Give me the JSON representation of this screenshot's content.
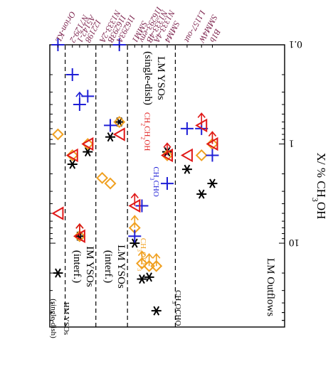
{
  "colors": {
    "CH3OCHO": "#000000",
    "CH3OCH3": "#f0a020",
    "CH3CHO": "#1f1fd6",
    "CH2CH2OH": "#e01818",
    "source_label": "#7a1f4a",
    "axis": "#000000"
  },
  "chart_data": {
    "type": "scatter",
    "orientation": "rotated 180 degrees (printed upside down)",
    "ylabel": "X/ % CH3OH",
    "yscale": "log",
    "ylim": [
      0.1,
      70
    ],
    "yticks": [
      {
        "v": 0.1,
        "label": "0.1"
      },
      {
        "v": 1,
        "label": "1"
      },
      {
        "v": 10,
        "label": "10"
      }
    ],
    "groups": [
      {
        "label": "LM Outflows",
        "sub": ""
      },
      {
        "label": "LM YSOs",
        "sub": "(single-dish)"
      },
      {
        "label": "LM YSOs",
        "sub": "(interf.)"
      },
      {
        "label": "IM YSOs",
        "sub": "(interf.)"
      },
      {
        "label": "HM YSOs",
        "sub": "(single-dish)"
      }
    ],
    "categories": [
      "B1b",
      "SMM4W",
      "L1157-out",
      "SMM4",
      "N1333-4A",
      "N1333-4B",
      "I16293-env",
      "SMM1",
      "I16293A",
      "I16293B",
      "N1333-2A",
      "I22198",
      "A5142-1",
      "N7129-2",
      "Orion-KL"
    ],
    "species_labels": [
      "CH3OCHO",
      "CH3OCH3",
      "CH3CHO",
      "CH2CH2OH"
    ],
    "series": [
      {
        "name": "CH3OCHO",
        "marker": "asterisk",
        "values": [
          {
            "x": "B1b",
            "y": 2.5
          },
          {
            "x": "SMM4W",
            "y": 3.2
          },
          {
            "x": "L1157-out",
            "y": 1.8
          },
          {
            "x": "SMM4",
            "y": 1.2
          },
          {
            "x": "N1333-4A",
            "y": 48
          },
          {
            "x": "N1333-4B",
            "y": 22
          },
          {
            "x": "I16293-env",
            "y": 23
          },
          {
            "x": "SMM1",
            "y": 10
          },
          {
            "x": "I16293A",
            "y": 0.6
          },
          {
            "x": "I16293B",
            "y": 0.85
          },
          {
            "x": "I22198",
            "y": 1.2
          },
          {
            "x": "A5142-1",
            "y": 8.5,
            "upper_limit": true
          },
          {
            "x": "N7129-2",
            "y": 1.6
          },
          {
            "x": "Orion-KL",
            "y": 20
          }
        ]
      },
      {
        "name": "CH3OCH3",
        "marker": "diamond",
        "values": [
          {
            "x": "B1b",
            "y": 1.0,
            "upper_limit": true
          },
          {
            "x": "SMM4W",
            "y": 1.3
          },
          {
            "x": "SMM4",
            "y": 1.3
          },
          {
            "x": "N1333-4A",
            "y": 17,
            "upper_limit": true
          },
          {
            "x": "N1333-4B",
            "y": 17,
            "upper_limit": true
          },
          {
            "x": "I16293-env",
            "y": 16,
            "upper_limit": true
          },
          {
            "x": "SMM1",
            "y": 7,
            "upper_limit": true
          },
          {
            "x": "I16293A",
            "y": 0.6
          },
          {
            "x": "I16293B",
            "y": 2.5
          },
          {
            "x": "N1333-2A",
            "y": 2.2
          },
          {
            "x": "I22198",
            "y": 1.0
          },
          {
            "x": "A5142-1",
            "y": 8.5,
            "upper_limit": true
          },
          {
            "x": "N7129-2",
            "y": 1.3
          },
          {
            "x": "Orion-KL",
            "y": 0.8
          }
        ]
      },
      {
        "name": "CH3CHO",
        "marker": "plus",
        "values": [
          {
            "x": "B1b",
            "y": 1.3
          },
          {
            "x": "SMM4W",
            "y": 0.7
          },
          {
            "x": "L1157-out",
            "y": 0.7
          },
          {
            "x": "SMM4",
            "y": 2.5
          },
          {
            "x": "I16293-env",
            "y": 4.2
          },
          {
            "x": "SMM1",
            "y": 8.5
          },
          {
            "x": "I16293A",
            "y": 0.1
          },
          {
            "x": "I16293B",
            "y": 0.65
          },
          {
            "x": "I22198",
            "y": 0.33
          },
          {
            "x": "A5142-1",
            "y": 0.4,
            "upper_limit": true
          },
          {
            "x": "N7129-2",
            "y": 0.2
          },
          {
            "x": "Orion-KL",
            "y": 0.1
          }
        ]
      },
      {
        "name": "CH2CH2OH",
        "marker": "triangle",
        "values": [
          {
            "x": "B1b",
            "y": 1.0,
            "upper_limit": true
          },
          {
            "x": "SMM4W",
            "y": 0.65,
            "upper_limit": true
          },
          {
            "x": "L1157-out",
            "y": 1.3
          },
          {
            "x": "SMM4",
            "y": 1.3,
            "upper_limit": true
          },
          {
            "x": "SMM1",
            "y": 4.2,
            "upper_limit": true
          },
          {
            "x": "I16293A",
            "y": 0.8
          },
          {
            "x": "I22198",
            "y": 1.0
          },
          {
            "x": "A5142-1",
            "y": 8.5,
            "upper_limit": true
          },
          {
            "x": "N7129-2",
            "y": 1.3
          },
          {
            "x": "Orion-KL",
            "y": 5.0
          }
        ]
      }
    ]
  }
}
